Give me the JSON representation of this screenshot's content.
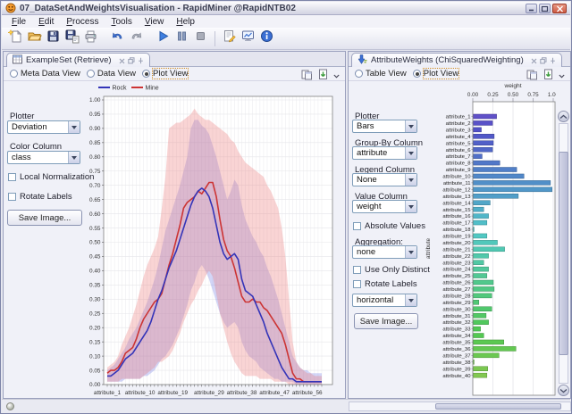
{
  "window": {
    "title": "07_DataSetAndWeightsVisualisation - RapidMiner @RapidNTB02"
  },
  "menu": {
    "items": [
      "File",
      "Edit",
      "Process",
      "Tools",
      "View",
      "Help"
    ]
  },
  "toolbar": {
    "groups": [
      [
        "new",
        "open",
        "save",
        "save-as",
        "print"
      ],
      [
        "undo",
        "redo"
      ],
      [
        "run",
        "pause",
        "stop"
      ],
      [
        "edit-note",
        "result-display",
        "info"
      ]
    ]
  },
  "left_panel": {
    "tab_title": "ExampleSet (Retrieve)",
    "views": [
      {
        "label": "Meta Data View",
        "selected": false
      },
      {
        "label": "Data View",
        "selected": false
      },
      {
        "label": "Plot View",
        "selected": true
      }
    ],
    "plotter_label": "Plotter",
    "plotter_value": "Deviation",
    "color_column_label": "Color Column",
    "color_column_value": "class",
    "local_normalization_label": "Local Normalization",
    "rotate_labels_label": "Rotate Labels",
    "save_image_label": "Save Image..."
  },
  "right_panel": {
    "tab_title": "AttributeWeights (ChiSquaredWeighting)",
    "views": [
      {
        "label": "Table View",
        "selected": false
      },
      {
        "label": "Plot View",
        "selected": true
      }
    ],
    "plotter_label": "Plotter",
    "plotter_value": "Bars",
    "group_by_label": "Group-By Column",
    "group_by_value": "attribute",
    "legend_column_label": "Legend Column",
    "legend_column_value": "None",
    "value_column_label": "Value Column",
    "value_column_value": "weight",
    "absolute_values_label": "Absolute Values",
    "aggregation_label": "Aggregation:",
    "aggregation_value": "none",
    "use_only_distinct_label": "Use Only Distinct",
    "rotate_labels_label": "Rotate Labels",
    "orientation_value": "horizontal",
    "save_image_label": "Save Image..."
  },
  "chart_data": [
    {
      "type": "line",
      "subtype": "deviation-bands",
      "x_count": 60,
      "x_tick_labels": [
        "attribute_1",
        "attribute_10",
        "attribute_19",
        "attribute_29",
        "attribute_38",
        "attribute_47",
        "attribute_56"
      ],
      "x_tick_indices": [
        0,
        9,
        18,
        28,
        37,
        46,
        55
      ],
      "ylim": [
        0,
        1
      ],
      "y_tick_step": 0.05,
      "legend_position": "top-left",
      "series": [
        {
          "name": "Rock",
          "color": "#3434b8",
          "band_color": "rgba(110,120,230,0.30)",
          "mean": [
            0.03,
            0.03,
            0.04,
            0.05,
            0.07,
            0.09,
            0.1,
            0.11,
            0.13,
            0.15,
            0.17,
            0.19,
            0.22,
            0.26,
            0.3,
            0.33,
            0.37,
            0.41,
            0.44,
            0.47,
            0.51,
            0.55,
            0.59,
            0.63,
            0.66,
            0.68,
            0.69,
            0.68,
            0.66,
            0.62,
            0.56,
            0.5,
            0.46,
            0.44,
            0.45,
            0.46,
            0.44,
            0.37,
            0.33,
            0.32,
            0.31,
            0.28,
            0.25,
            0.22,
            0.18,
            0.15,
            0.12,
            0.09,
            0.06,
            0.04,
            0.02,
            0.02,
            0.01,
            0.01,
            0.01,
            0.01,
            0.01,
            0.01,
            0.01,
            0.01
          ],
          "upper": [
            0.05,
            0.06,
            0.07,
            0.09,
            0.11,
            0.13,
            0.16,
            0.18,
            0.2,
            0.23,
            0.26,
            0.29,
            0.33,
            0.37,
            0.42,
            0.48,
            0.54,
            0.58,
            0.62,
            0.66,
            0.7,
            0.75,
            0.8,
            0.9,
            0.93,
            0.93,
            0.91,
            0.9,
            0.88,
            0.84,
            0.8,
            0.75,
            0.7,
            0.65,
            0.68,
            0.72,
            0.7,
            0.63,
            0.58,
            0.55,
            0.52,
            0.5,
            0.47,
            0.45,
            0.41,
            0.38,
            0.34,
            0.3,
            0.25,
            0.2,
            0.15,
            0.1,
            0.08,
            0.06,
            0.05,
            0.05,
            0.04,
            0.04,
            0.04,
            0.04
          ],
          "lower": [
            0.01,
            0.01,
            0.01,
            0.01,
            0.01,
            0.02,
            0.02,
            0.02,
            0.02,
            0.02,
            0.03,
            0.03,
            0.04,
            0.05,
            0.07,
            0.09,
            0.1,
            0.12,
            0.14,
            0.17,
            0.2,
            0.24,
            0.28,
            0.33,
            0.36,
            0.4,
            0.42,
            0.4,
            0.37,
            0.33,
            0.29,
            0.25,
            0.22,
            0.2,
            0.21,
            0.22,
            0.2,
            0.15,
            0.12,
            0.1,
            0.09,
            0.08,
            0.06,
            0.05,
            0.04,
            0.03,
            0.02,
            0.02,
            0.01,
            0.01,
            0.01,
            0.01,
            0.0,
            0.0,
            0.0,
            0.0,
            0.0,
            0.0,
            0.0,
            0.0
          ]
        },
        {
          "name": "Mine",
          "color": "#cc3434",
          "band_color": "rgba(235,120,120,0.32)",
          "mean": [
            0.04,
            0.05,
            0.05,
            0.06,
            0.08,
            0.11,
            0.12,
            0.13,
            0.16,
            0.2,
            0.23,
            0.25,
            0.27,
            0.29,
            0.3,
            0.32,
            0.37,
            0.42,
            0.46,
            0.51,
            0.56,
            0.62,
            0.64,
            0.65,
            0.66,
            0.68,
            0.67,
            0.69,
            0.71,
            0.71,
            0.66,
            0.58,
            0.51,
            0.47,
            0.45,
            0.41,
            0.36,
            0.31,
            0.29,
            0.29,
            0.3,
            0.29,
            0.29,
            0.27,
            0.26,
            0.24,
            0.22,
            0.2,
            0.18,
            0.14,
            0.09,
            0.04,
            0.02,
            0.02,
            0.01,
            0.01,
            0.01,
            0.01,
            0.01,
            0.01
          ],
          "upper": [
            0.06,
            0.07,
            0.08,
            0.1,
            0.14,
            0.17,
            0.2,
            0.24,
            0.28,
            0.33,
            0.38,
            0.42,
            0.45,
            0.48,
            0.52,
            0.62,
            0.73,
            0.9,
            0.91,
            0.92,
            0.92,
            0.93,
            0.94,
            0.95,
            0.97,
            0.95,
            0.94,
            0.93,
            0.93,
            0.92,
            0.91,
            0.9,
            0.89,
            0.88,
            0.86,
            0.85,
            0.82,
            0.8,
            0.78,
            0.77,
            0.76,
            0.75,
            0.74,
            0.73,
            0.7,
            0.68,
            0.65,
            0.62,
            0.55,
            0.45,
            0.3,
            0.15,
            0.08,
            0.06,
            0.05,
            0.04,
            0.04,
            0.03,
            0.03,
            0.03
          ],
          "lower": [
            0.01,
            0.01,
            0.01,
            0.01,
            0.02,
            0.02,
            0.02,
            0.02,
            0.02,
            0.02,
            0.03,
            0.04,
            0.05,
            0.06,
            0.08,
            0.08,
            0.09,
            0.1,
            0.12,
            0.15,
            0.18,
            0.22,
            0.25,
            0.28,
            0.3,
            0.33,
            0.35,
            0.38,
            0.4,
            0.38,
            0.32,
            0.25,
            0.2,
            0.15,
            0.11,
            0.08,
            0.06,
            0.04,
            0.03,
            0.03,
            0.03,
            0.03,
            0.02,
            0.02,
            0.02,
            0.02,
            0.01,
            0.01,
            0.01,
            0.01,
            0.0,
            0.0,
            0.0,
            0.0,
            0.0,
            0.0,
            0.0,
            0.0,
            0.0,
            0.0
          ]
        }
      ]
    },
    {
      "type": "bar",
      "orientation": "horizontal",
      "xlabel": "weight",
      "ylabel": "attribute",
      "xlim": [
        0,
        1
      ],
      "xticks": [
        "0.00",
        "0.25",
        "0.50",
        "0.75",
        "1.00"
      ],
      "categories": [
        "attribute_1",
        "attribute_2",
        "attribute_3",
        "attribute_4",
        "attribute_5",
        "attribute_6",
        "attribute_7",
        "attribute_8",
        "attribute_9",
        "attribute_10",
        "attribute_11",
        "attribute_12",
        "attribute_13",
        "attribute_14",
        "attribute_15",
        "attribute_16",
        "attribute_17",
        "attribute_18",
        "attribute_19",
        "attribute_20",
        "attribute_21",
        "attribute_22",
        "attribute_23",
        "attribute_24",
        "attribute_25",
        "attribute_26",
        "attribute_27",
        "attribute_28",
        "attribute_29",
        "attribute_30",
        "attribute_31",
        "attribute_32",
        "attribute_33",
        "attribute_34",
        "attribute_35",
        "attribute_36",
        "attribute_37",
        "attribute_38",
        "attribute_39",
        "attribute_40"
      ],
      "values": [
        0.29,
        0.24,
        0.1,
        0.26,
        0.25,
        0.24,
        0.11,
        0.33,
        0.54,
        0.63,
        0.96,
        0.98,
        0.56,
        0.21,
        0.13,
        0.19,
        0.17,
        0.01,
        0.17,
        0.3,
        0.39,
        0.19,
        0.13,
        0.19,
        0.17,
        0.25,
        0.26,
        0.23,
        0.07,
        0.23,
        0.16,
        0.19,
        0.09,
        0.13,
        0.38,
        0.53,
        0.32,
        0.01,
        0.18,
        0.17
      ],
      "bar_color_scale": {
        "start_hue": 248,
        "end_hue": 95,
        "saturation": 52,
        "lightness": 55
      }
    }
  ]
}
